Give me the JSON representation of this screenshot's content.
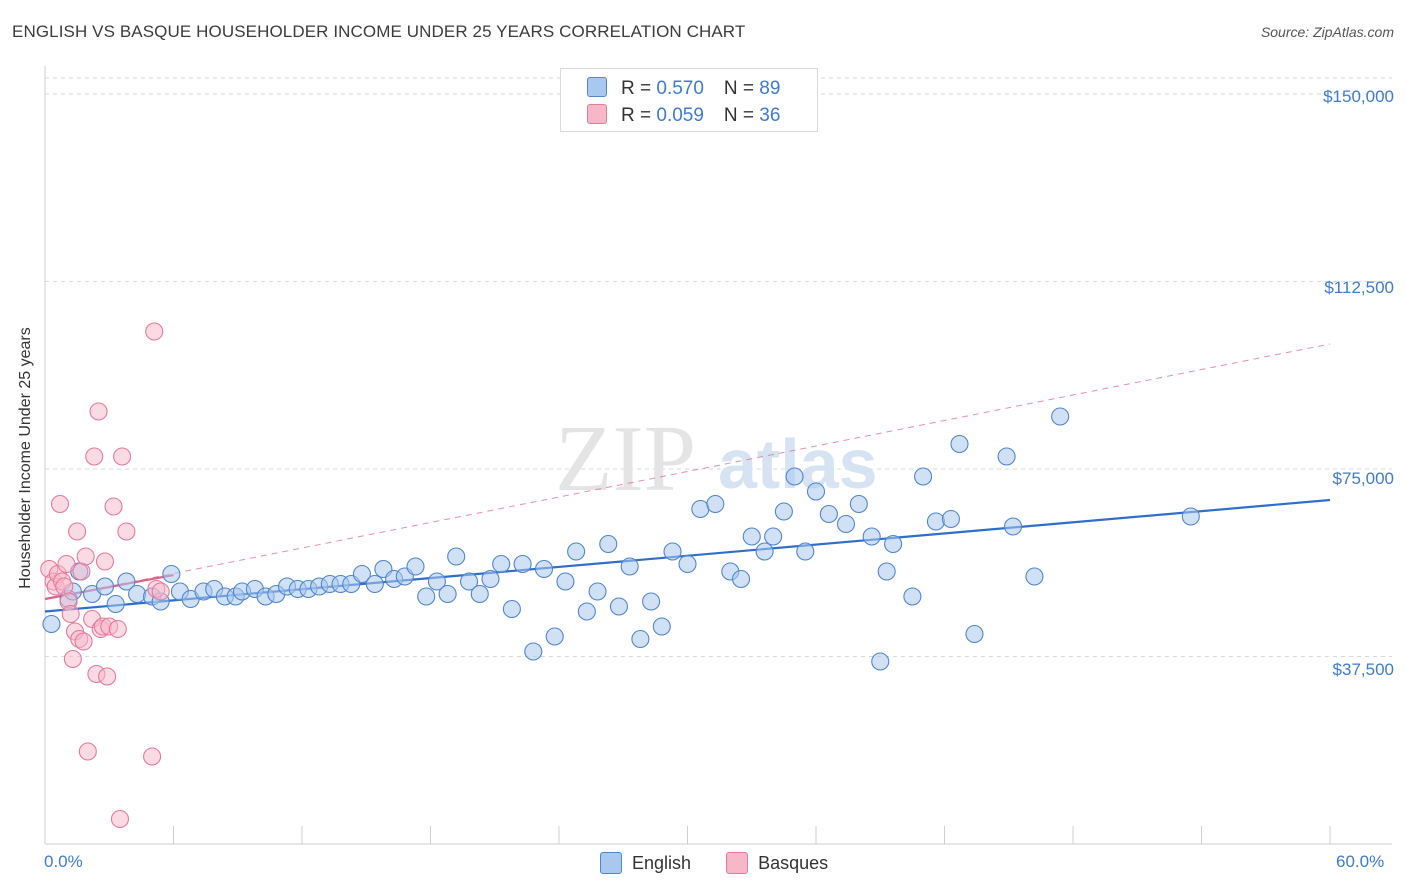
{
  "header": {
    "title": "ENGLISH VS BASQUE HOUSEHOLDER INCOME UNDER 25 YEARS CORRELATION CHART",
    "source": "Source: ZipAtlas.com"
  },
  "watermark": {
    "zip": "ZIP",
    "atlas": "atlas"
  },
  "legend_top": {
    "rows": [
      {
        "r_label": "R = ",
        "r_value": "0.570",
        "n_label": "N = ",
        "n_value": "89"
      },
      {
        "r_label": "R = ",
        "r_value": "0.059",
        "n_label": "N = ",
        "n_value": "36"
      }
    ]
  },
  "colors": {
    "english_fill": "#a9c8ef",
    "english_stroke": "#4f86cf",
    "english_line": "#2f6fcc",
    "basques_fill": "#f6b8c9",
    "basques_stroke": "#e7799a",
    "basques_line": "#e06088",
    "grid": "#d9d9d9",
    "axis_text": "#3f7bd0"
  },
  "chart_data": {
    "type": "scatter",
    "title": "ENGLISH VS BASQUE HOUSEHOLDER INCOME UNDER 25 YEARS CORRELATION CHART",
    "xlabel": "",
    "ylabel": "Householder Income Under 25 years",
    "xlim": [
      0,
      60
    ],
    "ylim": [
      0,
      156000
    ],
    "x_tick_labels": [
      "0.0%",
      "60.0%"
    ],
    "y_ticks": [
      37500,
      75000,
      112500,
      150000
    ],
    "y_tick_labels": [
      "$37,500",
      "$75,000",
      "$112,500",
      "$150,000"
    ],
    "legend": [
      "English",
      "Basques"
    ],
    "series": [
      {
        "name": "English",
        "r": 0.57,
        "n": 89,
        "trend": {
          "x": [
            0,
            60
          ],
          "y": [
            46500,
            68800
          ]
        },
        "points": [
          [
            0.3,
            44000
          ],
          [
            1.1,
            49000
          ],
          [
            1.3,
            50500
          ],
          [
            1.6,
            54500
          ],
          [
            2.2,
            50000
          ],
          [
            2.8,
            51500
          ],
          [
            3.3,
            48000
          ],
          [
            3.8,
            52500
          ],
          [
            4.3,
            50000
          ],
          [
            5.0,
            49500
          ],
          [
            5.4,
            48500
          ],
          [
            5.9,
            54000
          ],
          [
            6.3,
            50500
          ],
          [
            6.8,
            49000
          ],
          [
            7.4,
            50500
          ],
          [
            7.9,
            51000
          ],
          [
            8.4,
            49500
          ],
          [
            8.9,
            49500
          ],
          [
            9.2,
            50500
          ],
          [
            9.8,
            51000
          ],
          [
            10.3,
            49500
          ],
          [
            10.8,
            50000
          ],
          [
            11.3,
            51500
          ],
          [
            11.8,
            51000
          ],
          [
            12.3,
            51000
          ],
          [
            12.8,
            51500
          ],
          [
            13.3,
            52000
          ],
          [
            13.8,
            52000
          ],
          [
            14.3,
            52000
          ],
          [
            14.8,
            54000
          ],
          [
            15.4,
            52000
          ],
          [
            15.8,
            55000
          ],
          [
            16.3,
            53000
          ],
          [
            16.8,
            53500
          ],
          [
            17.3,
            55500
          ],
          [
            17.8,
            49500
          ],
          [
            18.3,
            52500
          ],
          [
            18.8,
            50000
          ],
          [
            19.2,
            57500
          ],
          [
            19.8,
            52500
          ],
          [
            20.3,
            50000
          ],
          [
            20.8,
            53000
          ],
          [
            21.3,
            56000
          ],
          [
            21.8,
            47000
          ],
          [
            22.3,
            56000
          ],
          [
            22.8,
            38500
          ],
          [
            23.3,
            55000
          ],
          [
            23.8,
            41500
          ],
          [
            24.3,
            52500
          ],
          [
            24.8,
            58500
          ],
          [
            25.3,
            46500
          ],
          [
            25.8,
            50500
          ],
          [
            26.3,
            60000
          ],
          [
            26.8,
            47500
          ],
          [
            27.3,
            55500
          ],
          [
            27.8,
            41000
          ],
          [
            28.3,
            48500
          ],
          [
            28.8,
            43500
          ],
          [
            29.3,
            58500
          ],
          [
            30.0,
            56000
          ],
          [
            30.6,
            67000
          ],
          [
            31.3,
            68000
          ],
          [
            32.0,
            54500
          ],
          [
            32.5,
            53000
          ],
          [
            33.0,
            61500
          ],
          [
            33.6,
            58500
          ],
          [
            34.0,
            61500
          ],
          [
            34.5,
            66500
          ],
          [
            35.0,
            73500
          ],
          [
            35.5,
            58500
          ],
          [
            36.0,
            70500
          ],
          [
            36.6,
            66000
          ],
          [
            37.4,
            64000
          ],
          [
            38.0,
            68000
          ],
          [
            38.6,
            61500
          ],
          [
            39.0,
            36500
          ],
          [
            39.3,
            54500
          ],
          [
            39.6,
            60000
          ],
          [
            40.5,
            49500
          ],
          [
            41.0,
            73500
          ],
          [
            41.6,
            64500
          ],
          [
            42.3,
            65000
          ],
          [
            42.7,
            80000
          ],
          [
            43.4,
            42000
          ],
          [
            44.9,
            77500
          ],
          [
            45.2,
            63500
          ],
          [
            46.2,
            53500
          ],
          [
            47.4,
            85500
          ],
          [
            53.5,
            65500
          ]
        ]
      },
      {
        "name": "Basques",
        "r": 0.059,
        "n": 36,
        "trend": {
          "x": [
            0,
            6.0
          ],
          "y": [
            49000,
            53800
          ]
        },
        "trend_extended": {
          "x": [
            0,
            60
          ],
          "y": [
            49000,
            100000
          ]
        },
        "points": [
          [
            0.2,
            55000
          ],
          [
            0.4,
            52500
          ],
          [
            0.5,
            51500
          ],
          [
            0.6,
            54000
          ],
          [
            0.7,
            68000
          ],
          [
            0.8,
            52500
          ],
          [
            0.9,
            51500
          ],
          [
            1.0,
            56000
          ],
          [
            1.1,
            48500
          ],
          [
            1.2,
            46000
          ],
          [
            1.3,
            37000
          ],
          [
            1.4,
            42500
          ],
          [
            1.5,
            62500
          ],
          [
            1.6,
            41000
          ],
          [
            1.7,
            54500
          ],
          [
            1.8,
            40500
          ],
          [
            1.9,
            57500
          ],
          [
            2.0,
            18500
          ],
          [
            2.2,
            45000
          ],
          [
            2.3,
            77500
          ],
          [
            2.4,
            34000
          ],
          [
            2.5,
            86500
          ],
          [
            2.6,
            43000
          ],
          [
            2.7,
            43500
          ],
          [
            2.8,
            56500
          ],
          [
            2.9,
            33500
          ],
          [
            3.0,
            43500
          ],
          [
            3.2,
            67500
          ],
          [
            3.4,
            43000
          ],
          [
            3.5,
            5000
          ],
          [
            3.6,
            77500
          ],
          [
            3.8,
            62500
          ],
          [
            5.0,
            17500
          ],
          [
            5.1,
            102500
          ],
          [
            5.2,
            51000
          ],
          [
            5.4,
            50500
          ]
        ]
      }
    ]
  }
}
